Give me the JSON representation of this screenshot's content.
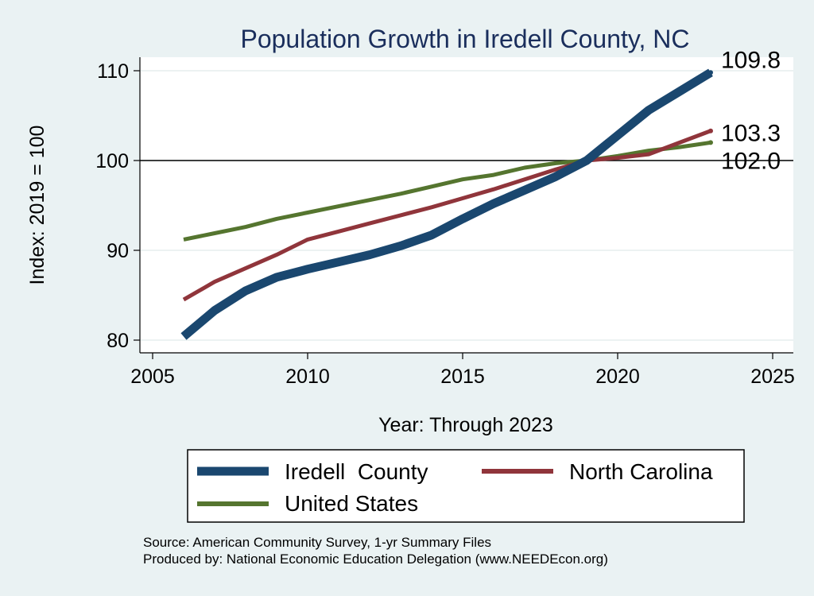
{
  "chart_data": {
    "type": "line",
    "title": "Population Growth in Iredell County, NC",
    "xlabel": "Year: Through 2023",
    "ylabel": "Index: 2019 = 100",
    "xlim": [
      2005,
      2025
    ],
    "ylim": [
      79,
      111.5
    ],
    "xticks": [
      2005,
      2010,
      2015,
      2020,
      2025
    ],
    "yticks": [
      80,
      90,
      100,
      110
    ],
    "reference_line": 100,
    "grid": true,
    "legend_position": "bottom",
    "series": [
      {
        "name": "Iredell  County",
        "color": "#1a476f",
        "x": [
          2006,
          2007,
          2008,
          2009,
          2010,
          2011,
          2012,
          2013,
          2014,
          2015,
          2016,
          2017,
          2018,
          2019,
          2020,
          2021,
          2022,
          2023
        ],
        "values": [
          80.4,
          83.3,
          85.5,
          87.0,
          87.9,
          88.7,
          89.5,
          90.5,
          91.7,
          93.5,
          95.2,
          96.7,
          98.2,
          100.0,
          102.8,
          105.6,
          107.7,
          109.8
        ],
        "end_label": "109.8"
      },
      {
        "name": "North Carolina",
        "color": "#90353b",
        "x": [
          2006,
          2007,
          2008,
          2009,
          2010,
          2011,
          2012,
          2013,
          2014,
          2015,
          2016,
          2017,
          2018,
          2019,
          2020,
          2021,
          2022,
          2023
        ],
        "values": [
          84.5,
          86.5,
          88.0,
          89.5,
          91.2,
          92.1,
          93.0,
          93.9,
          94.8,
          95.8,
          96.8,
          97.9,
          99.0,
          100.0,
          100.3,
          100.7,
          102.0,
          103.3
        ],
        "end_label": "103.3"
      },
      {
        "name": "United States",
        "color": "#55752f",
        "x": [
          2006,
          2007,
          2008,
          2009,
          2010,
          2011,
          2012,
          2013,
          2014,
          2015,
          2016,
          2017,
          2018,
          2019,
          2020,
          2021,
          2022,
          2023
        ],
        "values": [
          91.2,
          91.9,
          92.6,
          93.5,
          94.2,
          94.9,
          95.6,
          96.3,
          97.1,
          97.9,
          98.4,
          99.2,
          99.7,
          100.0,
          100.5,
          101.1,
          101.5,
          102.0
        ],
        "end_label": "102.0"
      }
    ],
    "notes": [
      "Source: American Community Survey, 1-yr Summary Files",
      "Produced by: National Economic Education Delegation (www.NEEDEcon.org)"
    ]
  }
}
